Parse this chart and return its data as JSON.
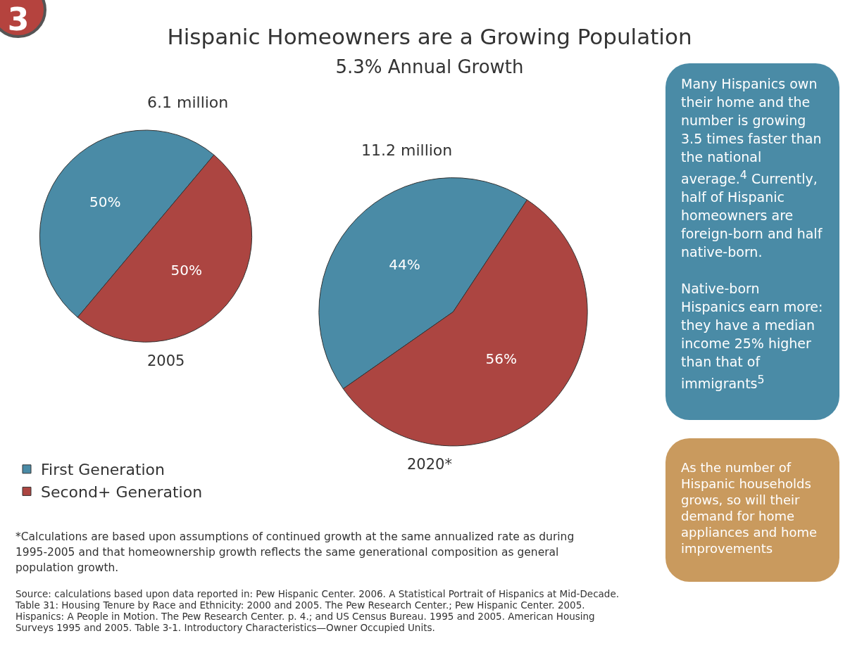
{
  "chart_data": [
    {
      "type": "other",
      "title": "Hispanic Homeowners are a Growing Population",
      "subtitle": "5.3% Annual Growth",
      "annotations": [
        "3"
      ]
    },
    {
      "type": "pie",
      "categories": [
        "First Generation",
        "Second+ Generation"
      ],
      "colors": [
        "#4a8ba6",
        "#ac4541"
      ],
      "legend": "bottom left",
      "annotations": [
        "6.1 million",
        "11.2 million"
      ],
      "series": [
        {
          "name": "2005",
          "values": [
            50,
            50
          ],
          "value_labels": [
            "50%",
            "50%"
          ]
        },
        {
          "name": "2020*",
          "values": [
            44,
            56
          ],
          "value_labels": [
            "44%",
            "56%"
          ]
        }
      ]
    },
    {
      "type": "other",
      "annotations": [
        "Many Hispanics own their home and the number is growing 3.5 times faster than the national average.$^{4}$  Currently, half of Hispanic homeowners are foreign-born and half native-born.",
        "Native-born Hispanics earn more: they have a median income 25% higher than that of immigrants$^{5}$",
        "As the number of Hispanic households grows, so will their demand for home appliances and home improvements",
        "*Calculations are based upon assumptions of continued growth at the same annualized rate as during 1995-2005 and that homeownership growth reflects the same generational composition as general population growth.",
        "Source: calculations based upon data reported in: Pew Hispanic Center. 2006. A Statistical Portrait of Hispanics at Mid-Decade. Table 31: Housing Tenure by Race and Ethnicity: 2000 and 2005. The Pew Research Center.; Pew Hispanic Center. 2005. Hispanics: A People in Motion. The Pew Research Center. p. 4.; and US Census Bureau. 1995 and 2005. American Housing Surveys 1995 and 2005. Table 3-1. Introductory Characteristics—Owner Occupied Units."
      ]
    }
  ]
}
